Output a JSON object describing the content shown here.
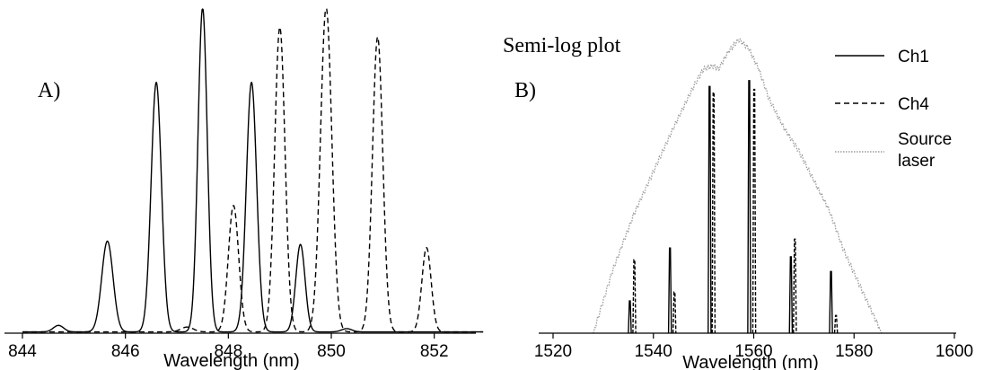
{
  "chart_data": [
    {
      "type": "line",
      "panel_label": "A)",
      "xlabel": "Wavelength (nm)",
      "ylabel": "",
      "xlim": [
        844,
        853
      ],
      "ylim": [
        0,
        1.0
      ],
      "x_ticks": [
        "844",
        "846",
        "848",
        "850",
        "852"
      ],
      "x_tick_values": [
        844,
        846,
        848,
        850,
        852
      ],
      "grid": false,
      "series": [
        {
          "style": "solid",
          "color": "#000000",
          "peaks": [
            {
              "x": 844.7,
              "y": 0.02,
              "width": 0.1
            },
            {
              "x": 845.65,
              "y": 0.28,
              "width": 0.11
            },
            {
              "x": 846.6,
              "y": 0.77,
              "width": 0.1
            },
            {
              "x": 847.5,
              "y": 1.0,
              "width": 0.09
            },
            {
              "x": 848.45,
              "y": 0.77,
              "width": 0.1
            },
            {
              "x": 849.4,
              "y": 0.27,
              "width": 0.09
            },
            {
              "x": 850.3,
              "y": 0.01,
              "width": 0.1
            }
          ]
        },
        {
          "style": "dashed",
          "color": "#000000",
          "peaks": [
            {
              "x": 847.2,
              "y": 0.015,
              "width": 0.12
            },
            {
              "x": 848.1,
              "y": 0.39,
              "width": 0.1
            },
            {
              "x": 849.0,
              "y": 0.94,
              "width": 0.1
            },
            {
              "x": 849.9,
              "y": 1.0,
              "width": 0.11
            },
            {
              "x": 850.9,
              "y": 0.91,
              "width": 0.1
            },
            {
              "x": 851.85,
              "y": 0.26,
              "width": 0.09
            }
          ]
        }
      ]
    },
    {
      "type": "line",
      "title": "Semi-log plot",
      "panel_label": "B)",
      "xlabel": "Wavelength (nm)",
      "ylabel": "",
      "xlim": [
        1520,
        1600
      ],
      "ylim": [
        0,
        1.0
      ],
      "x_ticks": [
        "1520",
        "1540",
        "1560",
        "1580",
        "1600"
      ],
      "x_tick_values": [
        1520,
        1540,
        1560,
        1580,
        1600
      ],
      "grid": false,
      "legend_placement": "right",
      "legend": [
        "Ch1",
        "Ch4",
        "Source laser"
      ],
      "series": [
        {
          "name": "Ch1",
          "style": "solid",
          "color": "#000000",
          "lines": [
            {
              "x": 1535.3,
              "y": 0.11
            },
            {
              "x": 1543.3,
              "y": 0.29
            },
            {
              "x": 1551.2,
              "y": 0.84
            },
            {
              "x": 1559.1,
              "y": 0.86
            },
            {
              "x": 1567.4,
              "y": 0.26
            },
            {
              "x": 1575.4,
              "y": 0.21
            }
          ]
        },
        {
          "name": "Ch4",
          "style": "dashed",
          "color": "#000000",
          "lines": [
            {
              "x": 1536.2,
              "y": 0.25
            },
            {
              "x": 1544.2,
              "y": 0.14
            },
            {
              "x": 1552.0,
              "y": 0.82
            },
            {
              "x": 1560.1,
              "y": 0.83
            },
            {
              "x": 1568.2,
              "y": 0.32
            },
            {
              "x": 1576.4,
              "y": 0.06
            }
          ]
        },
        {
          "name": "Source laser",
          "style": "dotted",
          "color": "#9a9a9a",
          "envelope": [
            [
              1528,
              0.0
            ],
            [
              1532,
              0.22
            ],
            [
              1536,
              0.4
            ],
            [
              1540,
              0.55
            ],
            [
              1544,
              0.7
            ],
            [
              1548,
              0.84
            ],
            [
              1550,
              0.9
            ],
            [
              1552,
              0.91
            ],
            [
              1553,
              0.9
            ],
            [
              1555,
              0.96
            ],
            [
              1557,
              1.0
            ],
            [
              1559,
              0.97
            ],
            [
              1561,
              0.9
            ],
            [
              1563,
              0.8
            ],
            [
              1566,
              0.7
            ],
            [
              1569,
              0.62
            ],
            [
              1572,
              0.52
            ],
            [
              1575,
              0.42
            ],
            [
              1578,
              0.28
            ],
            [
              1582,
              0.13
            ],
            [
              1585.5,
              0.0
            ]
          ]
        }
      ]
    }
  ]
}
